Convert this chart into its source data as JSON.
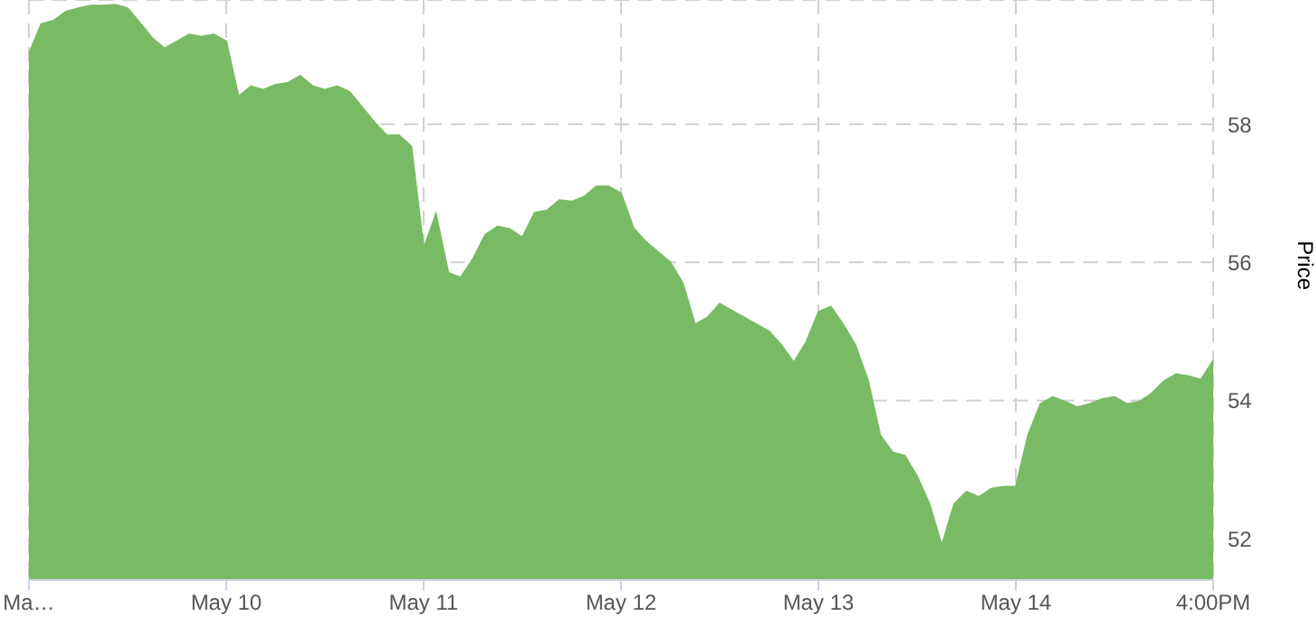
{
  "chart_data": {
    "type": "area",
    "ylabel": "Price",
    "ylim": [
      51.4,
      59.8
    ],
    "yticks": [
      52,
      54,
      56,
      58
    ],
    "grid": true,
    "categories": [
      "Ma…",
      null,
      null,
      null,
      null,
      null,
      null,
      null,
      null,
      null,
      null,
      null,
      null,
      null,
      null,
      null,
      "May 10",
      null,
      null,
      null,
      null,
      null,
      null,
      null,
      null,
      null,
      null,
      null,
      null,
      null,
      null,
      null,
      "May 11",
      null,
      null,
      null,
      null,
      null,
      null,
      null,
      null,
      null,
      null,
      null,
      null,
      null,
      null,
      null,
      "May 12",
      null,
      null,
      null,
      null,
      null,
      null,
      null,
      null,
      null,
      null,
      null,
      null,
      null,
      null,
      null,
      "May 13",
      null,
      null,
      null,
      null,
      null,
      null,
      null,
      null,
      null,
      null,
      null,
      null,
      null,
      null,
      null,
      "May 14",
      null,
      null,
      null,
      null,
      null,
      null,
      null,
      null,
      null,
      null,
      null,
      null,
      null,
      null,
      null,
      "4:00PM"
    ],
    "series": [
      {
        "color": "#78bb64",
        "values": [
          59.02,
          59.45,
          59.5,
          59.63,
          59.68,
          59.72,
          59.72,
          59.73,
          59.68,
          59.47,
          59.25,
          59.1,
          59.2,
          59.3,
          59.27,
          59.3,
          59.2,
          58.4,
          58.55,
          58.5,
          58.57,
          58.6,
          58.7,
          58.55,
          58.5,
          58.55,
          58.47,
          58.25,
          58.03,
          57.84,
          57.84,
          57.68,
          56.2,
          56.7,
          55.85,
          55.78,
          56.05,
          56.4,
          56.52,
          56.48,
          56.36,
          56.72,
          56.75,
          56.9,
          56.88,
          56.95,
          57.1,
          57.1,
          57.0,
          56.5,
          56.3,
          56.15,
          56.0,
          55.7,
          55.1,
          55.2,
          55.4,
          55.3,
          55.2,
          55.1,
          55.0,
          54.8,
          54.55,
          54.84,
          55.28,
          55.36,
          55.1,
          54.8,
          54.3,
          53.5,
          53.25,
          53.2,
          52.9,
          52.5,
          51.9,
          52.5,
          52.68,
          52.6,
          52.72,
          52.75,
          52.75,
          53.5,
          53.95,
          54.05,
          53.98,
          53.9,
          53.95,
          54.02,
          54.05,
          53.95,
          53.98,
          54.1,
          54.28,
          54.38,
          54.35,
          54.3,
          54.58
        ]
      }
    ]
  }
}
